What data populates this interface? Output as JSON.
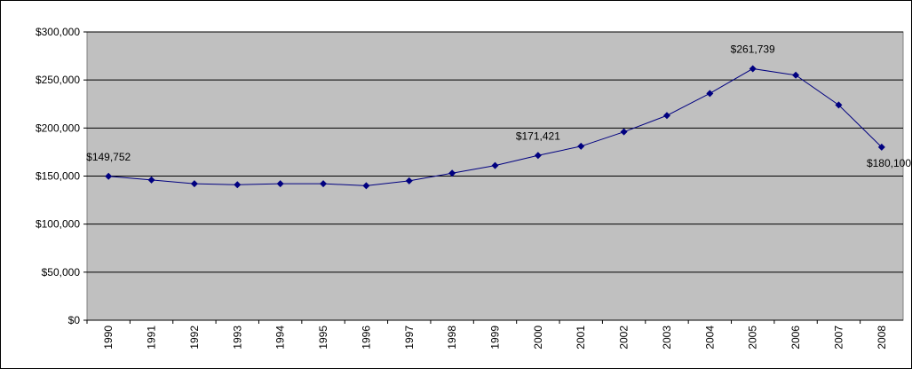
{
  "chart_data": {
    "type": "line",
    "categories": [
      "1990",
      "1991",
      "1992",
      "1993",
      "1994",
      "1995",
      "1996",
      "1997",
      "1998",
      "1999",
      "2000",
      "2001",
      "2002",
      "2003",
      "2004",
      "2005",
      "2006",
      "2007",
      "2008"
    ],
    "series": [
      {
        "color": "#000080",
        "values": [
          149752,
          146000,
          142000,
          141000,
          142000,
          142000,
          140000,
          145000,
          153000,
          161000,
          171421,
          181000,
          196000,
          213000,
          236000,
          261739,
          255000,
          224000,
          180100
        ],
        "value_labels": [
          "$149,752",
          null,
          null,
          null,
          null,
          null,
          null,
          null,
          null,
          null,
          "$171,421",
          null,
          null,
          null,
          null,
          "$261,739",
          null,
          null,
          "$180,100"
        ]
      }
    ],
    "ylim": [
      0,
      300000
    ],
    "yticks": [
      {
        "value": 0,
        "label": "$0"
      },
      {
        "value": 50000,
        "label": "$50,000"
      },
      {
        "value": 100000,
        "label": "$100,000"
      },
      {
        "value": 150000,
        "label": "$150,000"
      },
      {
        "value": 200000,
        "label": "$200,000"
      },
      {
        "value": 250000,
        "label": "$250,000"
      },
      {
        "value": 300000,
        "label": "$300,000"
      }
    ],
    "grid": true
  }
}
